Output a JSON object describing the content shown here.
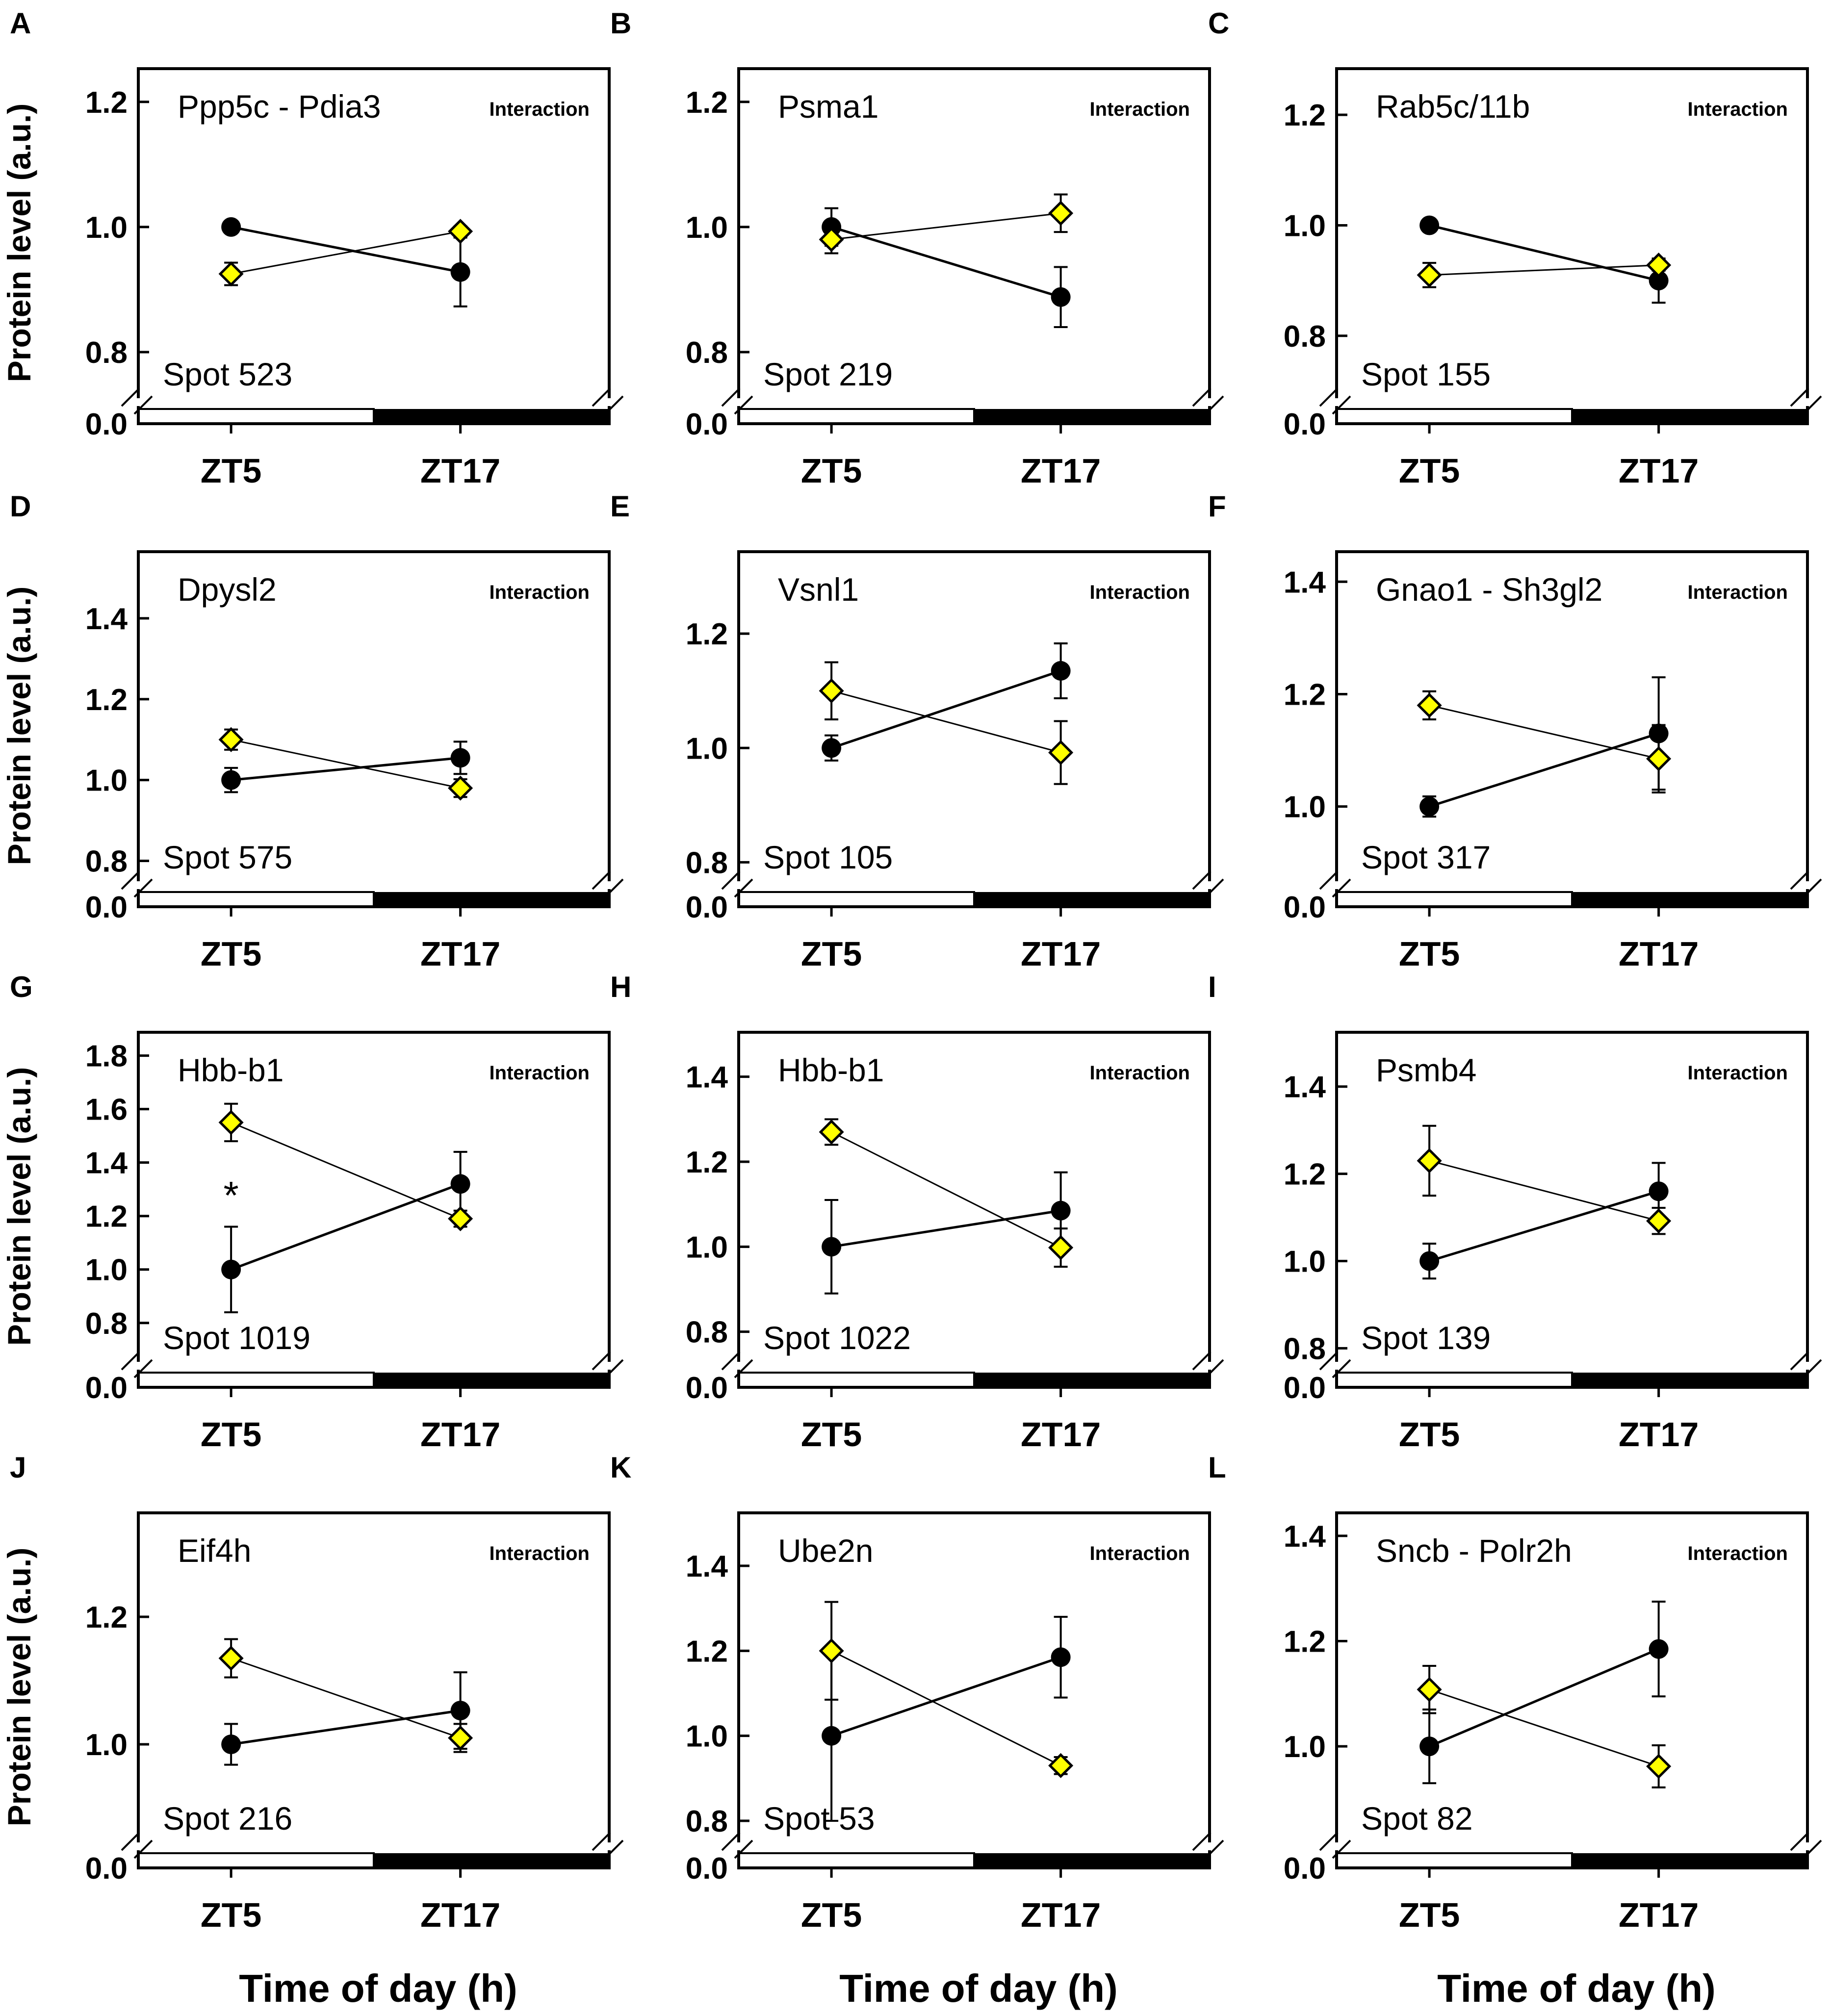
{
  "figure": {
    "ylabel": "Protein level (a.u.)",
    "xlabel": "Time of day (h)"
  },
  "chart_data": [
    {
      "letter": "A",
      "type": "line",
      "title": "Ppp5c - Pdia3",
      "tag": "Interaction",
      "spot": "Spot 523",
      "categories": [
        "ZT5",
        "ZT17"
      ],
      "ylim": [
        0.72,
        1.25
      ],
      "yticks": [
        "1.2",
        "1.0",
        "0.8"
      ],
      "ytick_values": [
        1.2,
        1.0,
        0.8
      ],
      "break_label": "0.0",
      "series": [
        {
          "name": "black",
          "marker": "circle",
          "values": [
            1.0,
            0.928
          ],
          "errors": [
            0.008,
            0.055
          ]
        },
        {
          "name": "yellow",
          "marker": "diamond",
          "values": [
            0.925,
            0.993
          ],
          "errors": [
            0.018,
            0.008
          ]
        }
      ],
      "annotations": []
    },
    {
      "letter": "B",
      "type": "line",
      "title": "Psma1",
      "tag": "Interaction",
      "spot": "Spot 219",
      "categories": [
        "ZT5",
        "ZT17"
      ],
      "ylim": [
        0.72,
        1.25
      ],
      "yticks": [
        "1.2",
        "1.0",
        "0.8"
      ],
      "ytick_values": [
        1.2,
        1.0,
        0.8
      ],
      "break_label": "0.0",
      "series": [
        {
          "name": "black",
          "marker": "circle",
          "values": [
            1.0,
            0.888
          ],
          "errors": [
            0.03,
            0.048
          ]
        },
        {
          "name": "yellow",
          "marker": "diamond",
          "values": [
            0.98,
            1.022
          ],
          "errors": [
            0.022,
            0.03
          ]
        }
      ],
      "annotations": []
    },
    {
      "letter": "C",
      "type": "line",
      "title": "Rab5c/11b",
      "tag": "Interaction",
      "spot": "Spot 155",
      "categories": [
        "ZT5",
        "ZT17"
      ],
      "ylim": [
        0.68,
        1.28
      ],
      "yticks": [
        "1.2",
        "1.0",
        "0.8"
      ],
      "ytick_values": [
        1.2,
        1.0,
        0.8
      ],
      "break_label": "0.0",
      "series": [
        {
          "name": "black",
          "marker": "circle",
          "values": [
            1.0,
            0.9
          ],
          "errors": [
            0.008,
            0.04
          ]
        },
        {
          "name": "yellow",
          "marker": "diamond",
          "values": [
            0.91,
            0.928
          ],
          "errors": [
            0.022,
            0.01
          ]
        }
      ],
      "annotations": []
    },
    {
      "letter": "D",
      "type": "line",
      "title": "Dpysl2",
      "tag": "Interaction",
      "spot": "Spot 575",
      "categories": [
        "ZT5",
        "ZT17"
      ],
      "ylim": [
        0.74,
        1.56
      ],
      "yticks": [
        "1.4",
        "1.2",
        "1.0",
        "0.8"
      ],
      "ytick_values": [
        1.4,
        1.2,
        1.0,
        0.8
      ],
      "break_label": "0.0",
      "series": [
        {
          "name": "black",
          "marker": "circle",
          "values": [
            1.0,
            1.055
          ],
          "errors": [
            0.03,
            0.04
          ]
        },
        {
          "name": "yellow",
          "marker": "diamond",
          "values": [
            1.1,
            0.98
          ],
          "errors": [
            0.025,
            0.022
          ]
        }
      ],
      "annotations": []
    },
    {
      "letter": "E",
      "type": "line",
      "title": "Vsnl1",
      "tag": "Interaction",
      "spot": "Spot 105",
      "categories": [
        "ZT5",
        "ZT17"
      ],
      "ylim": [
        0.76,
        1.34
      ],
      "yticks": [
        "1.2",
        "1.0",
        "0.8"
      ],
      "ytick_values": [
        1.2,
        1.0,
        0.8
      ],
      "break_label": "0.0",
      "series": [
        {
          "name": "black",
          "marker": "circle",
          "values": [
            1.0,
            1.135
          ],
          "errors": [
            0.022,
            0.048
          ]
        },
        {
          "name": "yellow",
          "marker": "diamond",
          "values": [
            1.1,
            0.992
          ],
          "errors": [
            0.05,
            0.055
          ]
        }
      ],
      "annotations": []
    },
    {
      "letter": "F",
      "type": "line",
      "title": "Gnao1 - Sh3gl2",
      "tag": "Interaction",
      "spot": "Spot 317",
      "categories": [
        "ZT5",
        "ZT17"
      ],
      "ylim": [
        0.86,
        1.45
      ],
      "yticks": [
        "1.4",
        "1.2",
        "1.0"
      ],
      "ytick_values": [
        1.4,
        1.2,
        1.0
      ],
      "break_label": "0.0",
      "series": [
        {
          "name": "black",
          "marker": "circle",
          "values": [
            1.0,
            1.13
          ],
          "errors": [
            0.018,
            0.1
          ]
        },
        {
          "name": "yellow",
          "marker": "diamond",
          "values": [
            1.18,
            1.085
          ],
          "errors": [
            0.025,
            0.06
          ]
        }
      ],
      "annotations": []
    },
    {
      "letter": "G",
      "type": "line",
      "title": "Hbb-b1",
      "tag": "Interaction",
      "spot": "Spot 1019",
      "categories": [
        "ZT5",
        "ZT17"
      ],
      "ylim": [
        0.64,
        1.88
      ],
      "yticks": [
        "1.8",
        "1.6",
        "1.4",
        "1.2",
        "1.0",
        "0.8"
      ],
      "ytick_values": [
        1.8,
        1.6,
        1.4,
        1.2,
        1.0,
        0.8
      ],
      "break_label": "0.0",
      "series": [
        {
          "name": "black",
          "marker": "circle",
          "values": [
            1.0,
            1.32
          ],
          "errors": [
            0.16,
            0.12
          ]
        },
        {
          "name": "yellow",
          "marker": "diamond",
          "values": [
            1.55,
            1.19
          ],
          "errors": [
            0.07,
            0.03
          ]
        }
      ],
      "annotations": [
        {
          "text": "*",
          "category": "ZT5",
          "y": 1.3
        }
      ]
    },
    {
      "letter": "H",
      "type": "line",
      "title": "Hbb-b1",
      "tag": "Interaction",
      "spot": "Spot 1022",
      "categories": [
        "ZT5",
        "ZT17"
      ],
      "ylim": [
        0.72,
        1.5
      ],
      "yticks": [
        "1.4",
        "1.2",
        "1.0",
        "0.8"
      ],
      "ytick_values": [
        1.4,
        1.2,
        1.0,
        0.8
      ],
      "break_label": "0.0",
      "series": [
        {
          "name": "black",
          "marker": "circle",
          "values": [
            1.0,
            1.085
          ],
          "errors": [
            0.11,
            0.09
          ]
        },
        {
          "name": "yellow",
          "marker": "diamond",
          "values": [
            1.27,
            0.998
          ],
          "errors": [
            0.03,
            0.045
          ]
        }
      ],
      "annotations": []
    },
    {
      "letter": "I",
      "type": "line",
      "title": "Psmb4",
      "tag": "Interaction",
      "spot": "Spot 139",
      "categories": [
        "ZT5",
        "ZT17"
      ],
      "ylim": [
        0.76,
        1.52
      ],
      "yticks": [
        "1.4",
        "1.2",
        "1.0",
        "0.8"
      ],
      "ytick_values": [
        1.4,
        1.2,
        1.0,
        0.8
      ],
      "break_label": "0.0",
      "series": [
        {
          "name": "black",
          "marker": "circle",
          "values": [
            1.0,
            1.16
          ],
          "errors": [
            0.04,
            0.065
          ]
        },
        {
          "name": "yellow",
          "marker": "diamond",
          "values": [
            1.23,
            1.092
          ],
          "errors": [
            0.08,
            0.03
          ]
        }
      ],
      "annotations": []
    },
    {
      "letter": "J",
      "type": "line",
      "title": "Eif4h",
      "tag": "Interaction",
      "spot": "Spot 216",
      "categories": [
        "ZT5",
        "ZT17"
      ],
      "ylim": [
        0.84,
        1.36
      ],
      "yticks": [
        "1.2",
        "1.0"
      ],
      "ytick_values": [
        1.2,
        1.0
      ],
      "break_label": "0.0",
      "series": [
        {
          "name": "black",
          "marker": "circle",
          "values": [
            1.0,
            1.053
          ],
          "errors": [
            0.032,
            0.06
          ]
        },
        {
          "name": "yellow",
          "marker": "diamond",
          "values": [
            1.135,
            1.01
          ],
          "errors": [
            0.03,
            0.022
          ]
        }
      ],
      "annotations": []
    },
    {
      "letter": "K",
      "type": "line",
      "title": "Ube2n",
      "tag": "Interaction",
      "spot": "Spot 53",
      "categories": [
        "ZT5",
        "ZT17"
      ],
      "ylim": [
        0.74,
        1.52
      ],
      "yticks": [
        "1.4",
        "1.2",
        "1.0",
        "0.8"
      ],
      "ytick_values": [
        1.4,
        1.2,
        1.0,
        0.8
      ],
      "break_label": "0.0",
      "series": [
        {
          "name": "black",
          "marker": "circle",
          "values": [
            1.0,
            1.185
          ],
          "errors": [
            0.2,
            0.095
          ]
        },
        {
          "name": "yellow",
          "marker": "diamond",
          "values": [
            1.2,
            0.93
          ],
          "errors": [
            0.115,
            0.02
          ]
        }
      ],
      "annotations": []
    },
    {
      "letter": "L",
      "type": "line",
      "title": "Sncb - Polr2h",
      "tag": "Interaction",
      "spot": "Spot 82",
      "categories": [
        "ZT5",
        "ZT17"
      ],
      "ylim": [
        0.81,
        1.44
      ],
      "yticks": [
        "1.4",
        "1.2",
        "1.0"
      ],
      "ytick_values": [
        1.4,
        1.2,
        1.0
      ],
      "break_label": "0.0",
      "series": [
        {
          "name": "black",
          "marker": "circle",
          "values": [
            1.0,
            1.185
          ],
          "errors": [
            0.07,
            0.09
          ]
        },
        {
          "name": "yellow",
          "marker": "diamond",
          "values": [
            1.108,
            0.962
          ],
          "errors": [
            0.045,
            0.04
          ]
        }
      ],
      "annotations": []
    }
  ]
}
